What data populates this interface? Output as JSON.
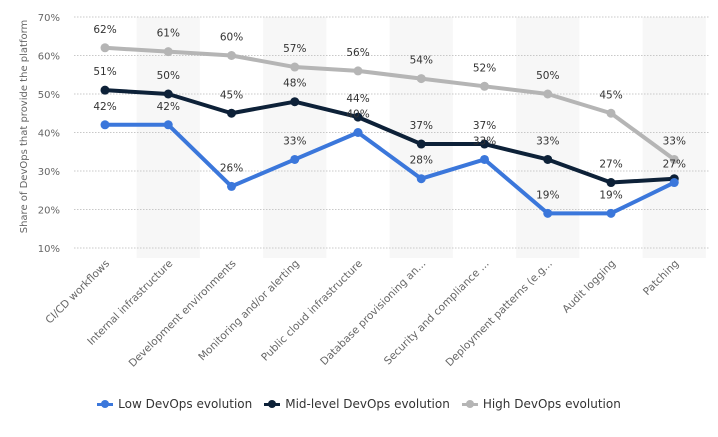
{
  "chart_data": {
    "type": "line",
    "title": "",
    "xlabel": "",
    "ylabel": "Share of DevOps that provide the platform",
    "ylim": [
      10,
      70
    ],
    "yticks": [
      10,
      20,
      30,
      40,
      50,
      60,
      70
    ],
    "ytick_labels": [
      "10%",
      "20%",
      "30%",
      "40%",
      "50%",
      "60%",
      "70%"
    ],
    "grid": true,
    "legend_position": "bottom",
    "categories": [
      "CI/CD workflows",
      "Internal infrastructure",
      "Development environments",
      "Monitoring and/or alerting",
      "Public cloud infrastructure",
      "Database provisioning an...",
      "Security and compliance ...",
      "Deployment patterns (e.g...",
      "Audit logging",
      "Patching"
    ],
    "series": [
      {
        "name": "Low DevOps evolution",
        "color": "#3b77db",
        "values": [
          42,
          42,
          26,
          33,
          40,
          28,
          33,
          19,
          19,
          27
        ],
        "labels": [
          "42%",
          "42%",
          "26%",
          "33%",
          "40%",
          "28%",
          "33%",
          "19%",
          "19%",
          "27%"
        ]
      },
      {
        "name": "Mid-level DevOps evolution",
        "color": "#0d2138",
        "values": [
          51,
          50,
          45,
          48,
          44,
          37,
          37,
          33,
          27,
          28
        ],
        "labels": [
          "51%",
          "50%",
          "45%",
          "48%",
          "44%",
          "37%",
          "37%",
          "33%",
          "27%",
          ""
        ]
      },
      {
        "name": "High DevOps evolution",
        "color": "#b5b5b5",
        "values": [
          62,
          61,
          60,
          57,
          56,
          54,
          52,
          50,
          45,
          33
        ],
        "labels": [
          "62%",
          "61%",
          "60%",
          "57%",
          "56%",
          "54%",
          "52%",
          "50%",
          "45%",
          "33%"
        ]
      }
    ]
  }
}
